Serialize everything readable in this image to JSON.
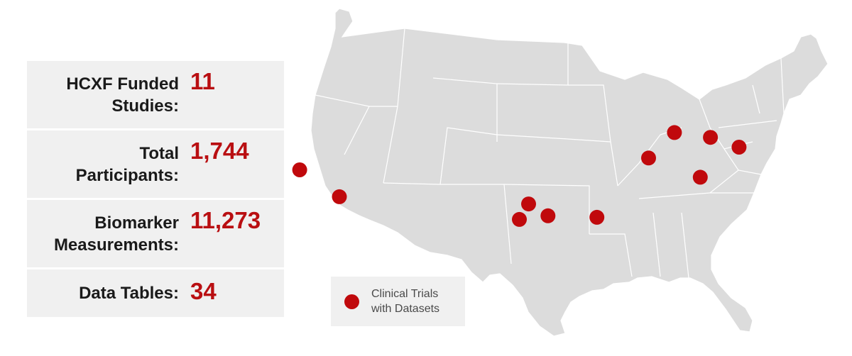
{
  "stats": [
    {
      "label_lines": [
        "HCXF Funded",
        "Studies:"
      ],
      "value": "11"
    },
    {
      "label_lines": [
        "Total",
        "Participants:"
      ],
      "value": "1,744"
    },
    {
      "label_lines": [
        "Biomarker",
        "Measurements:"
      ],
      "value": "11,273"
    },
    {
      "label_lines": [
        "Data Tables:"
      ],
      "value": "34"
    }
  ],
  "legend": {
    "lines": [
      "Clinical Trials",
      "with Datasets"
    ],
    "marker_color": "#c0090c"
  },
  "map": {
    "region": "United States (contiguous)",
    "land_color": "#dcdcdc",
    "border_color": "#ffffff",
    "marker_color": "#c0090c",
    "markers": [
      {
        "location": "San Francisco Bay area, CA",
        "lat": 37.7,
        "lon": -122.3
      },
      {
        "location": "Southern California",
        "lat": 33.9,
        "lon": -118.0
      },
      {
        "location": "Central Texas",
        "lat": 31.3,
        "lon": -97.5
      },
      {
        "location": "San Antonio, TX",
        "lat": 29.4,
        "lon": -98.5
      },
      {
        "location": "Houston, TX",
        "lat": 29.7,
        "lon": -95.4
      },
      {
        "location": "New Orleans, LA",
        "lat": 29.95,
        "lon": -90.1
      },
      {
        "location": "Lexington, KY",
        "lat": 38.0,
        "lon": -84.5
      },
      {
        "location": "Cleveland, OH",
        "lat": 41.5,
        "lon": -81.7
      },
      {
        "location": "Pennsylvania",
        "lat": 41.2,
        "lon": -77.8
      },
      {
        "location": "New Jersey",
        "lat": 40.2,
        "lon": -74.7
      },
      {
        "location": "Durham, NC",
        "lat": 36.0,
        "lon": -78.9
      }
    ]
  }
}
